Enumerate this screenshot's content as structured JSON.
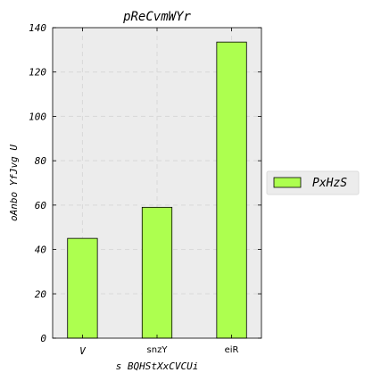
{
  "chart_data": {
    "type": "bar",
    "title": "pReCvmWYr",
    "xlabel": "s BQHStXxCVCUi",
    "ylabel": "oAnbo YfJvg U",
    "categories": [
      "V",
      "snzY",
      "eiR"
    ],
    "series": [
      {
        "name": "PxHzS",
        "values": [
          45,
          59,
          133.5
        ],
        "color": "#adff4f"
      }
    ],
    "ylim": [
      0,
      140
    ],
    "yticks": [
      0,
      20,
      40,
      60,
      80,
      100,
      120,
      140
    ],
    "grid": true,
    "legend_position": "right",
    "colors": {
      "plot_background": "#ececec",
      "grid": "#d8d8d8",
      "bar_edge": "#000000"
    }
  }
}
